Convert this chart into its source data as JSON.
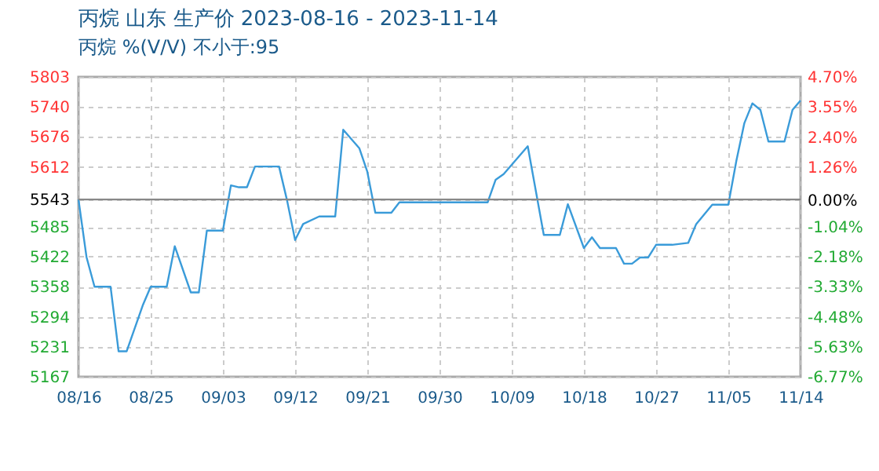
{
  "chart_data": {
    "type": "line",
    "title": "丙烷 山东 生产价 2023-08-16 - 2023-11-14",
    "subtitle": "丙烷 %(V/V)  不小于:95",
    "x": [
      "2023-08-16",
      "2023-08-17",
      "2023-08-18",
      "2023-08-20",
      "2023-08-21",
      "2023-08-22",
      "2023-08-24",
      "2023-08-25",
      "2023-08-27",
      "2023-08-28",
      "2023-08-30",
      "2023-08-31",
      "2023-09-01",
      "2023-09-03",
      "2023-09-04",
      "2023-09-05",
      "2023-09-06",
      "2023-09-07",
      "2023-09-10",
      "2023-09-11",
      "2023-09-12",
      "2023-09-13",
      "2023-09-15",
      "2023-09-17",
      "2023-09-18",
      "2023-09-20",
      "2023-09-21",
      "2023-09-22",
      "2023-09-24",
      "2023-09-25",
      "2023-10-06",
      "2023-10-07",
      "2023-10-08",
      "2023-10-11",
      "2023-10-13",
      "2023-10-15",
      "2023-10-16",
      "2023-10-18",
      "2023-10-19",
      "2023-10-20",
      "2023-10-22",
      "2023-10-23",
      "2023-10-24",
      "2023-10-25",
      "2023-10-26",
      "2023-10-27",
      "2023-10-29",
      "2023-10-31",
      "2023-11-01",
      "2023-11-03",
      "2023-11-05",
      "2023-11-06",
      "2023-11-07",
      "2023-11-08",
      "2023-11-09",
      "2023-11-10",
      "2023-11-12",
      "2023-11-13",
      "2023-11-14"
    ],
    "series": [
      {
        "color": "#3a9bd9",
        "values": [
          5543,
          5421,
          5358,
          5358,
          5221,
          5221,
          5318,
          5358,
          5358,
          5444,
          5346,
          5346,
          5477,
          5477,
          5573,
          5569,
          5569,
          5613,
          5613,
          5541,
          5457,
          5491,
          5507,
          5507,
          5691,
          5652,
          5602,
          5515,
          5515,
          5537,
          5537,
          5585,
          5597,
          5656,
          5468,
          5468,
          5533,
          5440,
          5463,
          5440,
          5440,
          5407,
          5407,
          5420,
          5420,
          5447,
          5447,
          5451,
          5491,
          5532,
          5532,
          5625,
          5705,
          5747,
          5733,
          5666,
          5666,
          5733,
          5753
        ]
      }
    ],
    "xlim": [
      "2023-08-16",
      "2023-11-14"
    ],
    "xticks": [
      {
        "value": "2023-08-16",
        "label": "08/16"
      },
      {
        "value": "2023-08-25",
        "label": "08/25"
      },
      {
        "value": "2023-09-03",
        "label": "09/03"
      },
      {
        "value": "2023-09-12",
        "label": "09/12"
      },
      {
        "value": "2023-09-21",
        "label": "09/21"
      },
      {
        "value": "2023-09-30",
        "label": "09/30"
      },
      {
        "value": "2023-10-09",
        "label": "10/09"
      },
      {
        "value": "2023-10-18",
        "label": "10/18"
      },
      {
        "value": "2023-10-27",
        "label": "10/27"
      },
      {
        "value": "2023-11-05",
        "label": "11/05"
      },
      {
        "value": "2023-11-14",
        "label": "11/14"
      }
    ],
    "ylim": [
      5167,
      5803
    ],
    "yticks": [
      5167,
      5231,
      5294,
      5358,
      5422,
      5485,
      5543,
      5612,
      5676,
      5740,
      5803
    ],
    "y2lim": [
      -6.77,
      4.7
    ],
    "y2ticks": [
      {
        "value": -6.77,
        "label": "-6.77%"
      },
      {
        "value": -5.63,
        "label": "-5.63%"
      },
      {
        "value": -4.48,
        "label": "-4.48%"
      },
      {
        "value": -3.33,
        "label": "-3.33%"
      },
      {
        "value": -2.18,
        "label": "-2.18%"
      },
      {
        "value": -1.04,
        "label": "-1.04%"
      },
      {
        "value": 0,
        "label": "0.00%"
      },
      {
        "value": 1.26,
        "label": "1.26%"
      },
      {
        "value": 2.4,
        "label": "2.40%"
      },
      {
        "value": 3.55,
        "label": "3.55%"
      },
      {
        "value": 4.7,
        "label": "4.70%"
      }
    ],
    "ref_lines": [
      {
        "axis": "y",
        "value": 5543,
        "color": "#888888"
      }
    ],
    "grid": true,
    "line_style": "solid",
    "marker": "none"
  }
}
